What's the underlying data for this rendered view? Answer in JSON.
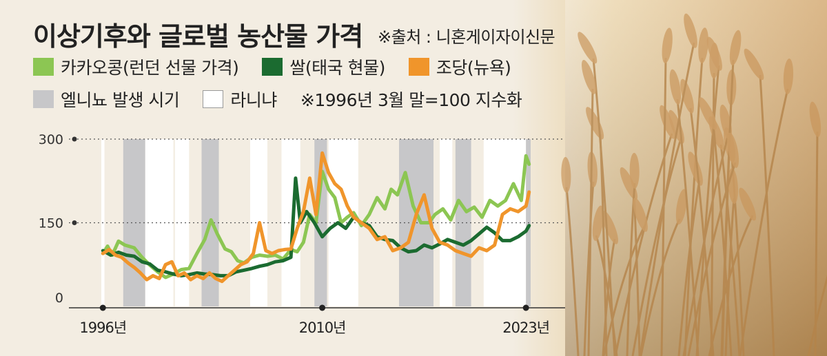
{
  "header": {
    "title": "이상기후와 글로벌 농산물 가격",
    "source": "※출처 : 니혼게이자이신문"
  },
  "legend": {
    "cocoa": "카카오콩(런던 선물 가격)",
    "rice": "쌀(태국 현물)",
    "sugar": "조당(뉴욕)",
    "elnino": "엘니뇨 발생 시기",
    "lanina": "라니냐",
    "note": "※1996년 3월 말=100 지수화"
  },
  "colors": {
    "cocoa": "#8cc653",
    "rice": "#1b6b30",
    "sugar": "#f0952b",
    "elnino": "#c7c7c9",
    "lanina": "#ffffff",
    "background": "#f3ede2"
  },
  "chart_data": {
    "type": "line",
    "title": "이상기후와 글로벌 농산물 가격",
    "ylim": [
      0,
      300
    ],
    "xlim": [
      1995.9,
      2023.3
    ],
    "y_ticks": [
      "300",
      "150",
      "0"
    ],
    "x_tick_labels": [
      "1996년",
      "2010년",
      "2023년"
    ],
    "x_ticks": [
      1996.0,
      2010.0,
      2023.0
    ],
    "elnino_periods": [
      [
        1997.3,
        1998.7
      ],
      [
        2002.3,
        2003.4
      ],
      [
        2009.5,
        2010.3
      ],
      [
        2014.9,
        2017.1
      ],
      [
        2018.5,
        2019.5
      ],
      [
        2023.0,
        2023.4
      ]
    ],
    "lanina_periods": [
      [
        1995.6,
        1996.1
      ],
      [
        1998.7,
        2000.5
      ],
      [
        2000.6,
        2001.5
      ],
      [
        2005.4,
        2006.5
      ],
      [
        2007.4,
        2008.6
      ],
      [
        2010.4,
        2012.3
      ],
      [
        2017.5,
        2018.3
      ],
      [
        2020.3,
        2023.0
      ]
    ],
    "series": [
      {
        "name": "카카오콩(런던 선물 가격)",
        "x": [
          1996.0,
          1996.3,
          1996.6,
          1997.0,
          1997.4,
          1998.0,
          1998.5,
          1999.0,
          1999.5,
          2000.0,
          2000.5,
          2001.0,
          2001.5,
          2002.0,
          2002.5,
          2002.9,
          2003.3,
          2003.8,
          2004.2,
          2004.6,
          2005.0,
          2005.5,
          2006.0,
          2006.5,
          2007.0,
          2007.5,
          2008.0,
          2008.4,
          2008.8,
          2009.2,
          2009.6,
          2010.0,
          2010.4,
          2010.8,
          2011.2,
          2011.6,
          2012.0,
          2012.5,
          2013.0,
          2013.5,
          2014.0,
          2014.4,
          2014.8,
          2015.3,
          2015.8,
          2016.3,
          2016.8,
          2017.2,
          2017.7,
          2018.2,
          2018.7,
          2019.2,
          2019.7,
          2020.2,
          2020.7,
          2021.2,
          2021.7,
          2022.2,
          2022.7,
          2023.0,
          2023.2
        ],
        "values": [
          95,
          108,
          92,
          117,
          110,
          105,
          88,
          74,
          62,
          52,
          58,
          66,
          68,
          95,
          120,
          155,
          130,
          103,
          98,
          82,
          78,
          88,
          92,
          90,
          92,
          85,
          102,
          98,
          115,
          165,
          150,
          242,
          210,
          195,
          150,
          160,
          168,
          145,
          165,
          195,
          175,
          210,
          200,
          240,
          180,
          150,
          150,
          165,
          175,
          155,
          190,
          170,
          178,
          160,
          190,
          180,
          190,
          220,
          190,
          270,
          255
        ]
      },
      {
        "name": "쌀(태국 현물)",
        "x": [
          1996.0,
          1996.5,
          1997.0,
          1997.5,
          1998.0,
          1998.5,
          1999.0,
          1999.5,
          2000.0,
          2000.5,
          2001.0,
          2001.5,
          2002.0,
          2002.5,
          2003.0,
          2003.5,
          2004.0,
          2004.5,
          2005.0,
          2005.5,
          2006.0,
          2006.5,
          2007.0,
          2007.5,
          2008.0,
          2008.3,
          2008.6,
          2009.0,
          2009.5,
          2010.0,
          2010.5,
          2011.0,
          2011.5,
          2012.0,
          2012.5,
          2013.0,
          2013.5,
          2014.0,
          2014.5,
          2015.0,
          2015.5,
          2016.0,
          2016.5,
          2017.0,
          2017.5,
          2018.0,
          2018.5,
          2019.0,
          2019.5,
          2020.0,
          2020.5,
          2021.0,
          2021.5,
          2022.0,
          2022.5,
          2023.0,
          2023.2
        ],
        "values": [
          100,
          92,
          97,
          92,
          90,
          80,
          76,
          65,
          62,
          58,
          55,
          57,
          60,
          58,
          57,
          55,
          55,
          62,
          65,
          68,
          72,
          75,
          80,
          82,
          88,
          230,
          150,
          170,
          150,
          125,
          140,
          150,
          140,
          160,
          150,
          145,
          125,
          120,
          118,
          105,
          98,
          100,
          110,
          105,
          112,
          120,
          115,
          110,
          118,
          130,
          142,
          132,
          118,
          118,
          125,
          135,
          145
        ]
      },
      {
        "name": "조당(뉴욕)",
        "x": [
          1996.0,
          1996.4,
          1996.8,
          1997.2,
          1997.6,
          1998.0,
          1998.4,
          1998.8,
          1999.2,
          1999.6,
          2000.0,
          2000.4,
          2000.8,
          2001.2,
          2001.6,
          2002.0,
          2002.4,
          2002.8,
          2003.2,
          2003.6,
          2004.0,
          2004.4,
          2004.8,
          2005.2,
          2005.6,
          2006.0,
          2006.4,
          2006.8,
          2007.2,
          2007.6,
          2008.0,
          2008.4,
          2008.8,
          2009.2,
          2009.6,
          2010.0,
          2010.4,
          2010.8,
          2011.2,
          2011.6,
          2012.0,
          2012.5,
          2013.0,
          2013.5,
          2014.0,
          2014.5,
          2015.0,
          2015.5,
          2016.0,
          2016.5,
          2017.0,
          2017.5,
          2018.0,
          2018.5,
          2019.0,
          2019.5,
          2020.0,
          2020.5,
          2021.0,
          2021.5,
          2022.0,
          2022.5,
          2023.0,
          2023.2
        ],
        "values": [
          95,
          102,
          92,
          88,
          78,
          70,
          60,
          48,
          55,
          50,
          75,
          80,
          55,
          60,
          48,
          55,
          50,
          60,
          50,
          45,
          55,
          65,
          75,
          80,
          95,
          150,
          100,
          95,
          100,
          102,
          103,
          140,
          170,
          230,
          165,
          275,
          240,
          220,
          210,
          180,
          160,
          150,
          140,
          120,
          125,
          100,
          105,
          115,
          165,
          200,
          140,
          115,
          110,
          100,
          95,
          90,
          105,
          100,
          110,
          165,
          175,
          170,
          180,
          205
        ]
      }
    ]
  }
}
